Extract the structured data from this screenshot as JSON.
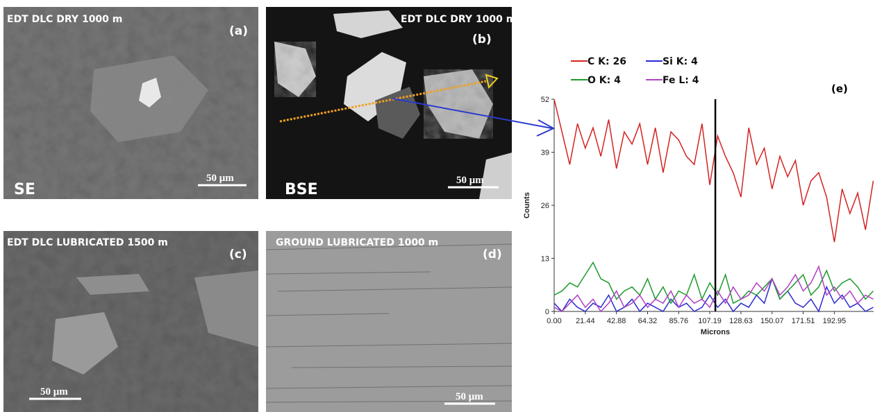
{
  "panels": [
    {
      "title": "EDT DLC DRY 1000 m",
      "label": "(a)",
      "mode": "SE",
      "scale_bar": "50 μm"
    },
    {
      "title": "EDT DLC DRY 1000 m",
      "label": "(b)",
      "mode": "BSE",
      "scale_bar": "50 μm"
    },
    {
      "title": "EDT DLC LUBRICATED 1500 m",
      "label": "(c)",
      "scale_bar": "50 μm"
    },
    {
      "title": "GROUND LUBRICATED 1000 m",
      "label": "(d)",
      "scale_bar": "50 μm"
    }
  ],
  "chart_data": {
    "type": "line",
    "label": "(e)",
    "xlabel": "Microns",
    "ylabel": "Counts",
    "x": [
      0,
      5.36,
      10.72,
      16.08,
      21.44,
      26.8,
      32.16,
      37.52,
      42.88,
      48.24,
      53.6,
      58.96,
      64.32,
      69.68,
      75.04,
      80.4,
      85.76,
      91.12,
      96.48,
      101.84,
      107.2,
      112.56,
      117.92,
      123.28,
      128.64,
      134,
      139.36,
      144.72,
      150.08,
      155.44,
      160.8,
      166.16,
      171.52,
      176.88,
      182.24,
      187.6,
      192.96,
      198.32,
      203.68,
      209.04,
      214.4,
      219.76
    ],
    "series": [
      {
        "name": "C K: 26",
        "color": "#d42222",
        "values": [
          52,
          44,
          36,
          46,
          40,
          45,
          38,
          47,
          35,
          44,
          41,
          46,
          36,
          45,
          34,
          44,
          42,
          38,
          36,
          46,
          31,
          43,
          38,
          34,
          28,
          45,
          36,
          40,
          30,
          38,
          33,
          37,
          26,
          32,
          34,
          28,
          17,
          30,
          24,
          29,
          20,
          32
        ]
      },
      {
        "name": "Si K: 4",
        "color": "#2a2ad0",
        "values": [
          2,
          0,
          3,
          1,
          0,
          2,
          1,
          4,
          0,
          1,
          3,
          0,
          2,
          1,
          0,
          3,
          1,
          2,
          0,
          1,
          4,
          1,
          3,
          0,
          2,
          1,
          4,
          2,
          8,
          3,
          5,
          2,
          1,
          3,
          0,
          6,
          2,
          4,
          1,
          2,
          0,
          1
        ]
      },
      {
        "name": "O K: 4",
        "color": "#1b9a2c",
        "values": [
          4,
          5,
          7,
          6,
          9,
          12,
          8,
          7,
          3,
          5,
          6,
          4,
          8,
          3,
          6,
          2,
          5,
          4,
          9,
          3,
          7,
          4,
          9,
          2,
          3,
          5,
          4,
          6,
          8,
          3,
          5,
          7,
          9,
          4,
          6,
          10,
          5,
          7,
          8,
          6,
          3,
          5
        ]
      },
      {
        "name": "Fe L: 4",
        "color": "#b040c4",
        "values": [
          1,
          0,
          2,
          4,
          1,
          3,
          0,
          2,
          5,
          1,
          2,
          4,
          1,
          3,
          2,
          5,
          1,
          4,
          2,
          3,
          1,
          5,
          2,
          6,
          3,
          4,
          7,
          5,
          8,
          4,
          6,
          9,
          5,
          7,
          11,
          4,
          6,
          3,
          5,
          2,
          4,
          3
        ]
      }
    ],
    "cursor_x": 111,
    "xlim": [
      0,
      220
    ],
    "ylim": [
      0,
      52
    ],
    "xticks": [
      {
        "value": 0,
        "label": "0.00"
      },
      21.44,
      42.88,
      64.32,
      85.76,
      107.19,
      128.63,
      150.07,
      171.51,
      192.95
    ],
    "yticks": [
      0,
      13,
      26,
      39,
      52
    ]
  }
}
